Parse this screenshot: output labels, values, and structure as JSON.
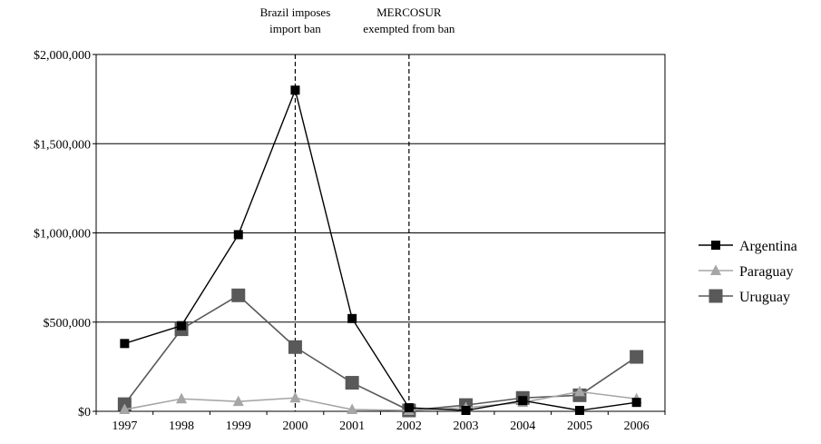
{
  "chart_data": {
    "type": "line",
    "title": "",
    "xlabel": "",
    "ylabel": "",
    "categories": [
      "1997",
      "1998",
      "1999",
      "2000",
      "2001",
      "2002",
      "2003",
      "2004",
      "2005",
      "2006"
    ],
    "ylim": [
      0,
      2000000
    ],
    "yticks": [
      0,
      500000,
      1000000,
      1500000,
      2000000
    ],
    "ytick_labels": [
      "$0",
      "$500,000",
      "$1,000,000",
      "$1,500,000",
      "$2,000,000"
    ],
    "grid": "horizontal",
    "legend_position": "right",
    "series": [
      {
        "name": "Argentina",
        "color": "#000000",
        "marker": "square-small",
        "values": [
          380000,
          480000,
          990000,
          1800000,
          520000,
          20000,
          5000,
          60000,
          5000,
          50000
        ]
      },
      {
        "name": "Paraguay",
        "color": "#a6a6a6",
        "marker": "triangle",
        "values": [
          10000,
          70000,
          55000,
          75000,
          10000,
          5000,
          20000,
          50000,
          110000,
          70000
        ]
      },
      {
        "name": "Uruguay",
        "color": "#595959",
        "marker": "square-large",
        "values": [
          40000,
          460000,
          650000,
          360000,
          160000,
          5000,
          35000,
          75000,
          90000,
          305000
        ]
      }
    ],
    "annotations": [
      {
        "at": "2000",
        "lines": [
          "Brazil imposes",
          "import ban"
        ]
      },
      {
        "at": "2002",
        "lines": [
          "MERCOSUR",
          "exempted from ban"
        ]
      }
    ]
  }
}
